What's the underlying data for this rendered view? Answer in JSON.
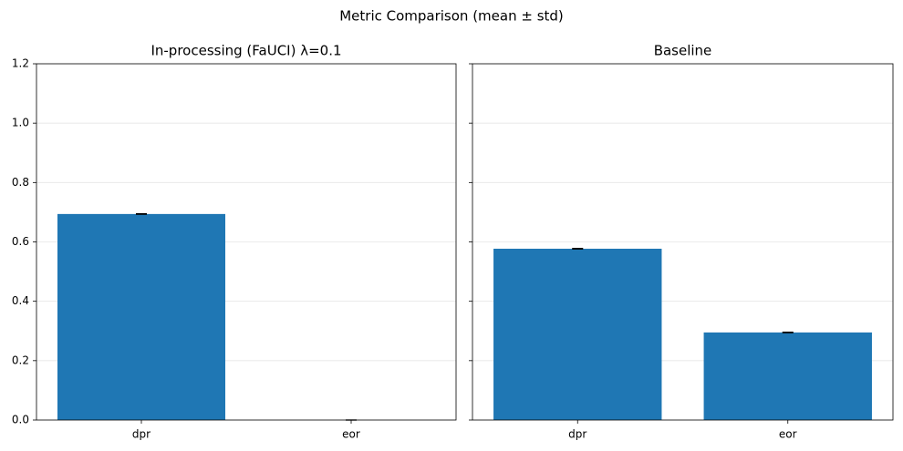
{
  "title": "Metric Comparison (mean ± std)",
  "chart_data": [
    {
      "type": "bar",
      "title": "In-processing (FaUCI) λ=0.1",
      "categories": [
        "dpr",
        "eor"
      ],
      "values": [
        0.694,
        0
      ],
      "errors": [
        0.001,
        0
      ],
      "color": "#1f77b4",
      "ylim": [
        0,
        1.2
      ],
      "yticks": [
        {
          "value": 0,
          "label": "0.0"
        },
        0.2,
        0.4,
        0.6,
        0.8,
        {
          "value": 1,
          "label": "1.0"
        },
        1.2
      ],
      "grid": true
    },
    {
      "type": "bar",
      "title": "Baseline",
      "categories": [
        "dpr",
        "eor"
      ],
      "values": [
        0.577,
        0.295
      ],
      "errors": [
        0.001,
        0.001
      ],
      "color": "#1f77b4",
      "ylim": [
        0,
        1.2
      ],
      "yticks": [
        0,
        0.2,
        0.4,
        0.6,
        0.8,
        1,
        1.2
      ],
      "grid": true
    }
  ]
}
